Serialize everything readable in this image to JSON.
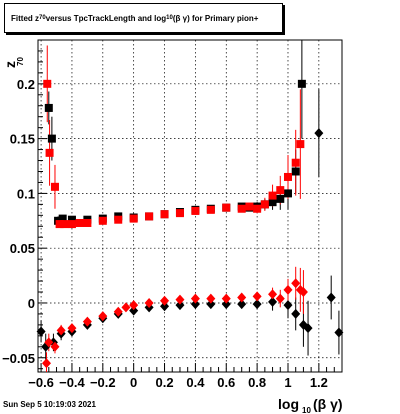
{
  "title": {
    "prefix": "Fitted  z",
    "z_sub": "70",
    "middle": " versus TpcTrackLength and log",
    "log_sub": "10",
    "suffix": "(β γ) for Primary pion+"
  },
  "timestamp": "Sun Sep  5 10:19:03 2021",
  "chart_data": {
    "type": "scatter",
    "xlabel": "log10(β γ)",
    "ylabel": "z70",
    "xlim": [
      -0.62,
      1.35
    ],
    "ylim": [
      -0.063,
      0.24
    ],
    "x_ticks": [
      -0.6,
      -0.4,
      -0.2,
      0,
      0.2,
      0.4,
      0.6,
      0.8,
      1,
      1.2
    ],
    "x_tick_labels": [
      "−0.6",
      "−0.4",
      "−0.2",
      "0",
      "0.2",
      "0.4",
      "0.6",
      "0.8",
      "1",
      "1.2"
    ],
    "y_ticks": [
      -0.05,
      0,
      0.05,
      0.1,
      0.15,
      0.2
    ],
    "y_tick_labels": [
      "−0.05",
      "0",
      "0.05",
      "0.1",
      "0.15",
      "0.2"
    ],
    "grid": true,
    "colors": {
      "series_black": "#000000",
      "series_red": "#ff0000"
    },
    "series": [
      {
        "marker": "square",
        "color": "#000000",
        "points": [
          [
            -0.55,
            0.178,
            0.015
          ],
          [
            -0.53,
            0.15,
            0.02
          ],
          [
            -0.49,
            0.075,
            0.004
          ],
          [
            -0.46,
            0.077,
            0.003
          ],
          [
            -0.4,
            0.076,
            0.003
          ],
          [
            -0.3,
            0.076,
            0.002
          ],
          [
            -0.2,
            0.077,
            0.002
          ],
          [
            -0.1,
            0.079,
            0.002
          ],
          [
            0,
            0.078,
            0.002
          ],
          [
            0.1,
            0.079,
            0.002
          ],
          [
            0.2,
            0.081,
            0.002
          ],
          [
            0.3,
            0.083,
            0.002
          ],
          [
            0.4,
            0.085,
            0.002
          ],
          [
            0.5,
            0.086,
            0.002
          ],
          [
            0.6,
            0.087,
            0.002
          ],
          [
            0.7,
            0.088,
            0.003
          ],
          [
            0.75,
            0.087,
            0.003
          ],
          [
            0.8,
            0.088,
            0.004
          ],
          [
            0.85,
            0.09,
            0.005
          ],
          [
            0.9,
            0.092,
            0.007
          ],
          [
            0.95,
            0.095,
            0.01
          ],
          [
            1.0,
            0.1,
            0.015
          ],
          [
            1.05,
            0.12,
            0.02
          ],
          [
            1.09,
            0.2,
            0.05
          ]
        ]
      },
      {
        "marker": "diamond",
        "color": "#000000",
        "points": [
          [
            -0.6,
            -0.026,
            0.01
          ],
          [
            -0.57,
            -0.04,
            0.012
          ],
          [
            -0.52,
            -0.036,
            0.008
          ],
          [
            -0.47,
            -0.028,
            0.006
          ],
          [
            -0.4,
            -0.026,
            0.004
          ],
          [
            -0.3,
            -0.02,
            0.003
          ],
          [
            -0.2,
            -0.014,
            0.003
          ],
          [
            -0.1,
            -0.01,
            0.003
          ],
          [
            0,
            -0.007,
            0.003
          ],
          [
            0.1,
            -0.004,
            0.003
          ],
          [
            0.2,
            -0.003,
            0.003
          ],
          [
            0.3,
            -0.002,
            0.003
          ],
          [
            0.4,
            -0.001,
            0.003
          ],
          [
            0.5,
            -0.001,
            0.003
          ],
          [
            0.6,
            -0.001,
            0.003
          ],
          [
            0.7,
            -0.001,
            0.004
          ],
          [
            0.8,
            -0.001,
            0.005
          ],
          [
            0.9,
            0.001,
            0.008
          ],
          [
            1.0,
            -0.002,
            0.012
          ],
          [
            1.05,
            -0.01,
            0.015
          ],
          [
            1.1,
            -0.02,
            0.02
          ],
          [
            1.13,
            -0.023,
            0.025
          ],
          [
            1.2,
            0.155,
            0.04
          ],
          [
            1.28,
            0.005,
            0.02
          ],
          [
            1.33,
            -0.027,
            0.02
          ]
        ]
      },
      {
        "marker": "square",
        "color": "#ff0000",
        "points": [
          [
            -0.56,
            0.2,
            0.035
          ],
          [
            -0.545,
            0.137,
            0.03
          ],
          [
            -0.51,
            0.106,
            0.02
          ],
          [
            -0.48,
            0.072,
            0.003
          ],
          [
            -0.45,
            0.072,
            0.003
          ],
          [
            -0.4,
            0.072,
            0.002
          ],
          [
            -0.35,
            0.073,
            0.002
          ],
          [
            -0.3,
            0.073,
            0.002
          ],
          [
            -0.2,
            0.075,
            0.002
          ],
          [
            -0.1,
            0.076,
            0.002
          ],
          [
            0,
            0.077,
            0.002
          ],
          [
            0.1,
            0.079,
            0.002
          ],
          [
            0.2,
            0.081,
            0.002
          ],
          [
            0.3,
            0.082,
            0.002
          ],
          [
            0.4,
            0.084,
            0.002
          ],
          [
            0.5,
            0.085,
            0.002
          ],
          [
            0.6,
            0.087,
            0.002
          ],
          [
            0.7,
            0.086,
            0.003
          ],
          [
            0.75,
            0.088,
            0.003
          ],
          [
            0.8,
            0.086,
            0.004
          ],
          [
            0.85,
            0.09,
            0.006
          ],
          [
            0.9,
            0.098,
            0.01
          ],
          [
            0.95,
            0.103,
            0.013
          ],
          [
            1.0,
            0.115,
            0.02
          ],
          [
            1.05,
            0.128,
            0.03
          ],
          [
            1.08,
            0.145,
            0.05
          ]
        ]
      },
      {
        "marker": "diamond",
        "color": "#ff0000",
        "points": [
          [
            -0.565,
            -0.055,
            0.01
          ],
          [
            -0.55,
            -0.036,
            0.008
          ],
          [
            -0.51,
            -0.04,
            0.006
          ],
          [
            -0.47,
            -0.025,
            0.005
          ],
          [
            -0.4,
            -0.023,
            0.004
          ],
          [
            -0.3,
            -0.017,
            0.003
          ],
          [
            -0.2,
            -0.012,
            0.003
          ],
          [
            -0.1,
            -0.008,
            0.003
          ],
          [
            -0.05,
            -0.004,
            0.003
          ],
          [
            0,
            -0.002,
            0.003
          ],
          [
            0.1,
            0,
            0.003
          ],
          [
            0.2,
            0.002,
            0.003
          ],
          [
            0.3,
            0.003,
            0.003
          ],
          [
            0.4,
            0.004,
            0.003
          ],
          [
            0.5,
            0.004,
            0.003
          ],
          [
            0.6,
            0.004,
            0.003
          ],
          [
            0.7,
            0.005,
            0.003
          ],
          [
            0.8,
            0.006,
            0.004
          ],
          [
            0.9,
            0.008,
            0.006
          ],
          [
            0.95,
            0.004,
            0.008
          ],
          [
            1.0,
            0.012,
            0.01
          ],
          [
            1.05,
            0.018,
            0.015
          ],
          [
            1.08,
            0.012,
            0.02
          ],
          [
            1.1,
            0.01,
            0.02
          ]
        ]
      }
    ]
  }
}
